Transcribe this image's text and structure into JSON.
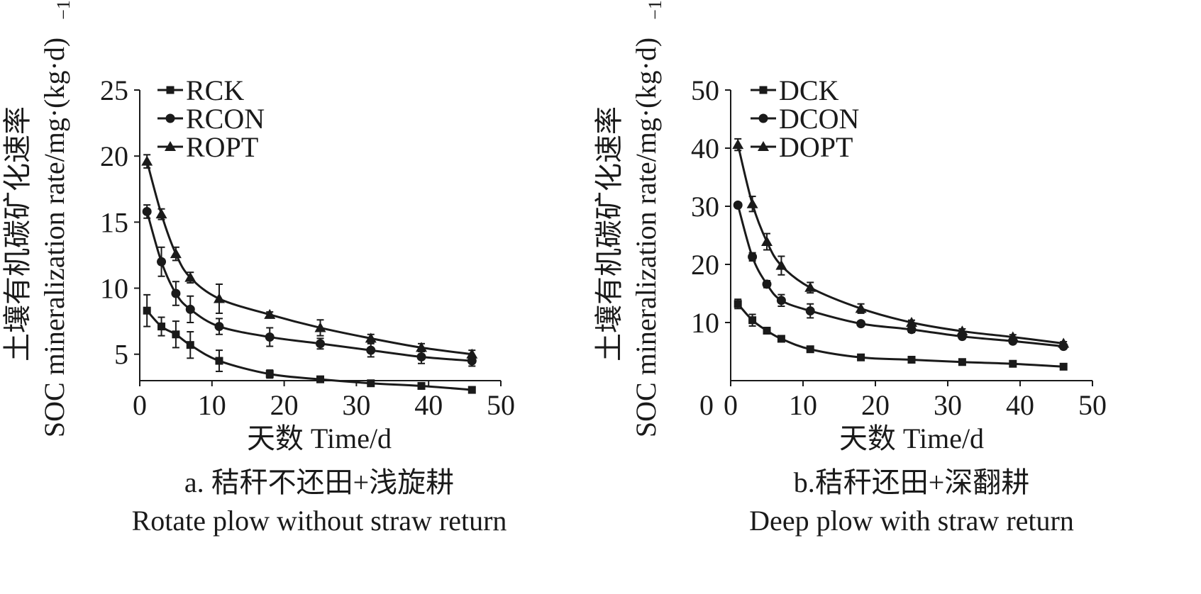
{
  "chart_data": [
    {
      "type": "line",
      "caption": "a. 秸秆不还田+浅旋耕",
      "caption_en": "Rotate plow without straw return",
      "xlabel": "天数 Time/d",
      "ylabel_cn": "土壤有机碳矿化速率",
      "ylabel_en": "SOC mineralization rate/mg·(kg·d)",
      "ylabel_sup": "−1",
      "xlim": [
        0,
        50
      ],
      "ylim": [
        3,
        25
      ],
      "xticks": [
        "0",
        "10",
        "20",
        "30",
        "40",
        "50"
      ],
      "yticks": [
        "5",
        "10",
        "15",
        "20",
        "25"
      ],
      "x": [
        1,
        3,
        5,
        7,
        11,
        18,
        25,
        32,
        39,
        46
      ],
      "legend_position": "top-left",
      "series": [
        {
          "name": "RCK",
          "marker": "square",
          "values": [
            8.3,
            7.1,
            6.5,
            5.7,
            4.5,
            3.5,
            3.1,
            2.8,
            2.6,
            2.3
          ],
          "errors": [
            1.2,
            0.7,
            1.0,
            1.0,
            0.8,
            0.3,
            0.2,
            0.2,
            0.2,
            0.2
          ]
        },
        {
          "name": "RCON",
          "marker": "circle",
          "values": [
            15.8,
            12.0,
            9.6,
            8.4,
            7.1,
            6.3,
            5.8,
            5.3,
            4.8,
            4.5
          ],
          "errors": [
            0.5,
            1.1,
            0.9,
            1.0,
            0.6,
            0.7,
            0.4,
            0.5,
            0.5,
            0.4
          ]
        },
        {
          "name": "ROPT",
          "marker": "triangle",
          "values": [
            19.6,
            15.6,
            12.6,
            10.8,
            9.2,
            8.0,
            7.0,
            6.2,
            5.5,
            5.0
          ],
          "errors": [
            0.5,
            0.4,
            0.5,
            0.4,
            1.1,
            0.2,
            0.6,
            0.3,
            0.3,
            0.3
          ]
        }
      ]
    },
    {
      "type": "line",
      "caption": "b.秸秆还田+深翻耕",
      "caption_en": "Deep plow with straw return",
      "xlabel": "天数 Time/d",
      "ylabel_cn": "土壤有机碳矿化速率",
      "ylabel_en": "SOC mineralization rate/mg·(kg·d)",
      "ylabel_sup": "−1",
      "xlim": [
        0,
        50
      ],
      "ylim": [
        0,
        50
      ],
      "xticks": [
        "0",
        "10",
        "20",
        "30",
        "40",
        "50"
      ],
      "yticks": [
        "10",
        "20",
        "30",
        "40",
        "50"
      ],
      "x": [
        1,
        3,
        5,
        7,
        11,
        18,
        25,
        32,
        39,
        46
      ],
      "legend_position": "top-left",
      "series": [
        {
          "name": "DCK",
          "marker": "square",
          "values": [
            13.2,
            10.4,
            8.6,
            7.2,
            5.4,
            4.0,
            3.6,
            3.2,
            2.9,
            2.4
          ],
          "errors": [
            0.8,
            1.0,
            0.4,
            0.3,
            0.5,
            0.3,
            0.2,
            0.2,
            0.2,
            0.2
          ]
        },
        {
          "name": "DCON",
          "marker": "circle",
          "values": [
            30.2,
            21.3,
            16.6,
            13.8,
            12.0,
            9.8,
            8.8,
            7.6,
            6.8,
            5.9
          ],
          "errors": [
            0.4,
            0.7,
            0.6,
            1.0,
            1.2,
            0.4,
            0.5,
            0.4,
            0.4,
            0.3
          ]
        },
        {
          "name": "DOPT",
          "marker": "triangle",
          "values": [
            40.6,
            30.4,
            23.9,
            19.8,
            16.0,
            12.4,
            10.0,
            8.5,
            7.5,
            6.4
          ],
          "errors": [
            1.0,
            1.3,
            1.4,
            1.6,
            0.9,
            0.8,
            0.4,
            0.4,
            0.4,
            0.3
          ]
        }
      ]
    }
  ]
}
